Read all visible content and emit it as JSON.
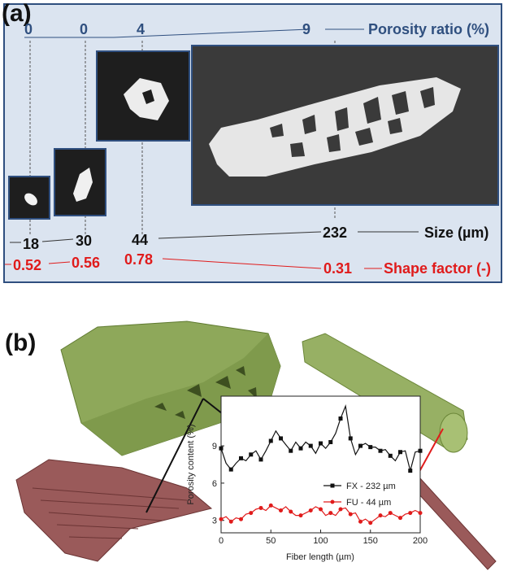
{
  "panel_a": {
    "label": "(a)",
    "porosity": [
      "0",
      "0",
      "4",
      "9"
    ],
    "porosity_title": "Porosity ratio (%)",
    "sizes": [
      "18",
      "30",
      "44",
      "232"
    ],
    "size_title": "Size (µm)",
    "shape_factors": [
      "0.52",
      "0.56",
      "0.78",
      "0.31"
    ],
    "shape_title": "Shape factor (-)"
  },
  "panel_b": {
    "label": "(b)"
  },
  "colors": {
    "navy": "#2f4f7f",
    "red": "#e01b1b",
    "green_fiber": "#8ea85a",
    "maroon_fiber": "#9a5a5a"
  },
  "chart_data": {
    "type": "line",
    "xlabel": "Fiber length (µm)",
    "ylabel": "Porosity content (%)",
    "xlim": [
      0,
      200
    ],
    "ylim": [
      2,
      13
    ],
    "xticks": [
      0,
      50,
      100,
      150,
      200
    ],
    "yticks": [
      3,
      6,
      9
    ],
    "legend_position": "right",
    "series": [
      {
        "name": "FX - 232 µm",
        "marker": "square",
        "color": "#111111",
        "x": [
          0,
          5,
          10,
          15,
          20,
          25,
          30,
          35,
          40,
          45,
          50,
          55,
          60,
          65,
          70,
          75,
          80,
          85,
          90,
          95,
          100,
          105,
          110,
          115,
          120,
          125,
          130,
          135,
          140,
          145,
          150,
          155,
          160,
          165,
          170,
          175,
          180,
          185,
          190,
          195,
          200
        ],
        "y": [
          8.8,
          7.6,
          7.1,
          7.6,
          8.0,
          7.8,
          8.3,
          8.6,
          7.9,
          8.6,
          9.4,
          10.2,
          9.6,
          9.1,
          8.6,
          9.3,
          8.8,
          9.3,
          9.0,
          8.4,
          9.2,
          8.8,
          9.3,
          10.0,
          11.2,
          12.2,
          9.6,
          8.3,
          9.0,
          9.2,
          8.9,
          8.9,
          8.6,
          8.7,
          8.2,
          7.8,
          8.5,
          8.6,
          7.0,
          8.5,
          8.6
        ]
      },
      {
        "name": "FU -  44 µm",
        "marker": "circle",
        "color": "#e01b1b",
        "x": [
          0,
          5,
          10,
          15,
          20,
          25,
          30,
          35,
          40,
          45,
          50,
          55,
          60,
          65,
          70,
          75,
          80,
          85,
          90,
          95,
          100,
          105,
          110,
          115,
          120,
          125,
          130,
          135,
          140,
          145,
          150,
          155,
          160,
          165,
          170,
          175,
          180,
          185,
          190,
          195,
          200
        ],
        "y": [
          3.1,
          3.3,
          2.9,
          3.2,
          3.1,
          3.5,
          3.6,
          3.9,
          4.0,
          3.8,
          4.2,
          4.0,
          3.8,
          4.1,
          3.7,
          3.4,
          3.4,
          3.6,
          3.8,
          4.1,
          3.9,
          3.4,
          3.6,
          3.4,
          3.9,
          4.0,
          3.5,
          3.6,
          2.9,
          3.1,
          2.8,
          3.1,
          3.4,
          3.3,
          3.6,
          3.4,
          3.2,
          3.5,
          3.6,
          3.8,
          3.6
        ]
      }
    ]
  }
}
